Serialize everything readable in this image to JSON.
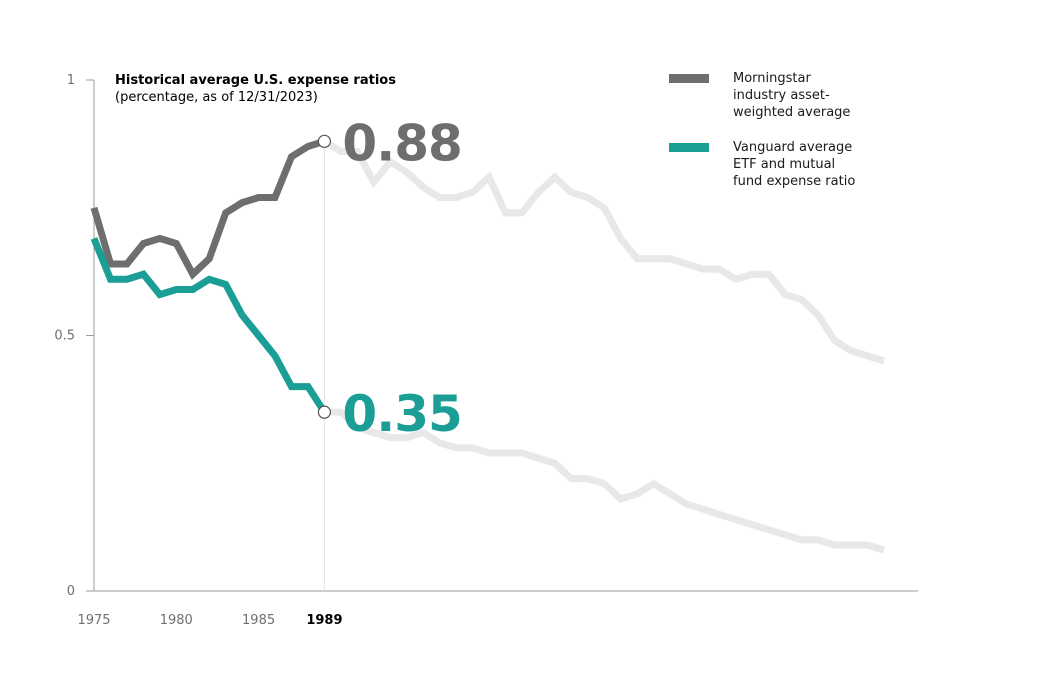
{
  "chart_data": {
    "type": "line",
    "title": "Historical average U.S. expense ratios",
    "subtitle": "(percentage, as of 12/31/2023)",
    "x": [
      1975,
      1976,
      1977,
      1978,
      1979,
      1980,
      1981,
      1982,
      1983,
      1984,
      1985,
      1986,
      1987,
      1988,
      1989,
      1990,
      1991,
      1992,
      1993,
      1994,
      1995,
      1996,
      1997,
      1998,
      1999,
      2000,
      2001,
      2002,
      2003,
      2004,
      2005,
      2006,
      2007,
      2008,
      2009,
      2010,
      2011,
      2012,
      2013,
      2014,
      2015,
      2016,
      2017,
      2018,
      2019,
      2020,
      2021,
      2022,
      2023
    ],
    "x_ticks": [
      1975,
      1980,
      1985,
      1989
    ],
    "highlight_year": 1989,
    "y_ticks": [
      "0",
      "0.5",
      "1"
    ],
    "ylim": [
      0,
      1
    ],
    "series": [
      {
        "name": "Morningstar industry asset-weighted average",
        "legend_lines": [
          "Morningstar",
          "industry asset-",
          "weighted average"
        ],
        "color": "#6e6e6e",
        "values": [
          0.75,
          0.64,
          0.64,
          0.68,
          0.69,
          0.68,
          0.62,
          0.65,
          0.74,
          0.76,
          0.77,
          0.77,
          0.85,
          0.87,
          0.88,
          0.86,
          0.86,
          0.8,
          0.84,
          0.82,
          0.79,
          0.77,
          0.77,
          0.78,
          0.81,
          0.74,
          0.74,
          0.78,
          0.81,
          0.78,
          0.77,
          0.75,
          0.69,
          0.65,
          0.65,
          0.65,
          0.64,
          0.63,
          0.63,
          0.61,
          0.62,
          0.62,
          0.58,
          0.57,
          0.54,
          0.49,
          0.47,
          0.46,
          0.45
        ],
        "highlight_value": "0.88"
      },
      {
        "name": "Vanguard average ETF and mutual fund expense ratio",
        "legend_lines": [
          "Vanguard average",
          "ETF and mutual",
          "fund expense ratio"
        ],
        "color": "#1a9e96",
        "values": [
          0.69,
          0.61,
          0.61,
          0.62,
          0.58,
          0.59,
          0.59,
          0.61,
          0.6,
          0.54,
          0.5,
          0.46,
          0.4,
          0.4,
          0.35,
          0.35,
          0.32,
          0.31,
          0.3,
          0.3,
          0.31,
          0.29,
          0.28,
          0.28,
          0.27,
          0.27,
          0.27,
          0.26,
          0.25,
          0.22,
          0.22,
          0.21,
          0.18,
          0.19,
          0.21,
          0.19,
          0.17,
          0.16,
          0.15,
          0.14,
          0.13,
          0.12,
          0.11,
          0.1,
          0.1,
          0.09,
          0.09,
          0.09,
          0.08
        ],
        "highlight_value": "0.35"
      }
    ],
    "future_color": "#e8e8e8",
    "grid": false,
    "legend": "top-right"
  }
}
